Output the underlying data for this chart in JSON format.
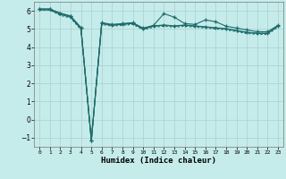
{
  "xlabel": "Humidex (Indice chaleur)",
  "background_color": "#c5ecea",
  "grid_color": "#aed4d3",
  "line_color": "#1e6b6b",
  "xlim": [
    -0.5,
    23.5
  ],
  "ylim": [
    -1.5,
    6.5
  ],
  "yticks": [
    -1,
    0,
    1,
    2,
    3,
    4,
    5,
    6
  ],
  "xticks": [
    0,
    1,
    2,
    3,
    4,
    5,
    6,
    7,
    8,
    9,
    10,
    11,
    12,
    13,
    14,
    15,
    16,
    17,
    18,
    19,
    20,
    21,
    22,
    23
  ],
  "line1_x": [
    0,
    1,
    2,
    3,
    4,
    5,
    6,
    7,
    8,
    9,
    10,
    11,
    12,
    13,
    14,
    15,
    16,
    17,
    18,
    19,
    20,
    21,
    22,
    23
  ],
  "line1_y": [
    6.1,
    6.1,
    5.85,
    5.7,
    5.05,
    -1.15,
    5.35,
    5.25,
    5.3,
    5.35,
    5.05,
    5.2,
    5.85,
    5.65,
    5.3,
    5.25,
    5.5,
    5.4,
    5.15,
    5.05,
    4.95,
    4.85,
    4.85,
    5.2
  ],
  "line2_x": [
    0,
    1,
    2,
    3,
    4,
    5,
    6,
    7,
    8,
    9,
    10,
    11,
    12,
    13,
    14,
    15,
    16,
    17,
    18,
    19,
    20,
    21,
    22,
    23
  ],
  "line2_y": [
    6.05,
    6.05,
    5.8,
    5.65,
    5.0,
    -1.15,
    5.3,
    5.2,
    5.25,
    5.3,
    5.0,
    5.15,
    5.2,
    5.15,
    5.2,
    5.15,
    5.1,
    5.05,
    5.0,
    4.9,
    4.8,
    4.75,
    4.75,
    5.15
  ],
  "line3_x": [
    0,
    1,
    2,
    3,
    4,
    5,
    6,
    7,
    8,
    9,
    10,
    11,
    12,
    13,
    14,
    15,
    16,
    17,
    18,
    19,
    20,
    21,
    22,
    23
  ],
  "line3_y": [
    6.05,
    6.05,
    5.75,
    5.6,
    4.95,
    -1.15,
    5.25,
    5.15,
    5.2,
    5.25,
    4.95,
    5.1,
    5.15,
    5.1,
    5.15,
    5.1,
    5.05,
    5.0,
    4.95,
    4.85,
    4.75,
    4.7,
    4.7,
    5.1
  ],
  "line4_x": [
    0,
    1,
    2,
    3,
    4,
    5,
    6,
    7,
    8,
    9,
    10,
    11,
    12,
    13,
    14,
    15,
    16,
    17,
    18,
    19,
    20,
    21,
    22,
    23
  ],
  "line4_y": [
    6.1,
    6.1,
    5.88,
    5.72,
    5.08,
    -1.15,
    5.32,
    5.22,
    5.27,
    5.32,
    5.02,
    5.17,
    5.22,
    5.17,
    5.22,
    5.17,
    5.12,
    5.07,
    5.02,
    4.92,
    4.82,
    4.77,
    4.77,
    5.17
  ]
}
